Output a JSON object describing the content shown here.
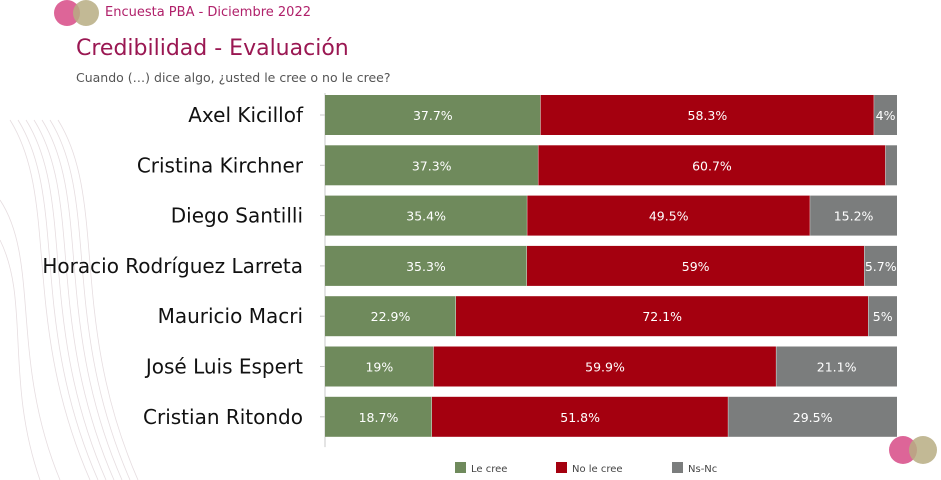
{
  "header": {
    "survey": "Encuesta PBA - Diciembre 2022",
    "title": "Credibilidad - Evaluación",
    "subtitle": "Cuando (…) dice algo, ¿usted le cree o no le cree?"
  },
  "colors": {
    "le_cree": "#6f8a5c",
    "no_le_cree": "#a4000f",
    "ns_nc": "#7b7d7d",
    "title": "#9a1752"
  },
  "chart_data": {
    "type": "bar",
    "orientation": "horizontal",
    "stacked": true,
    "title": "Credibilidad - Evaluación",
    "subtitle": "Cuando (…) dice algo, ¿usted le cree o no le cree?",
    "categories": [
      "Axel Kicillof",
      "Cristina Kirchner",
      "Diego Santilli",
      "Horacio Rodríguez Larreta",
      "Mauricio Macri",
      "José Luis Espert",
      "Cristian Ritondo"
    ],
    "series": [
      {
        "name": "Le cree",
        "values": [
          37.7,
          37.3,
          35.4,
          35.3,
          22.9,
          19,
          18.7
        ],
        "labels": [
          "37.7%",
          "37.3%",
          "35.4%",
          "35.3%",
          "22.9%",
          "19%",
          "18.7%"
        ]
      },
      {
        "name": "No le cree",
        "values": [
          58.3,
          60.7,
          49.5,
          59,
          72.1,
          59.9,
          51.8
        ],
        "labels": [
          "58.3%",
          "60.7%",
          "49.5%",
          "59%",
          "72.1%",
          "59.9%",
          "51.8%"
        ]
      },
      {
        "name": "Ns-Nc",
        "values": [
          4,
          2,
          15.2,
          5.7,
          5,
          21.1,
          29.5
        ],
        "labels": [
          "4%",
          "",
          "15.2%",
          "5.7%",
          "5%",
          "21.1%",
          "29.5%"
        ]
      }
    ],
    "xlim": [
      0,
      100
    ],
    "legend": "bottom"
  }
}
